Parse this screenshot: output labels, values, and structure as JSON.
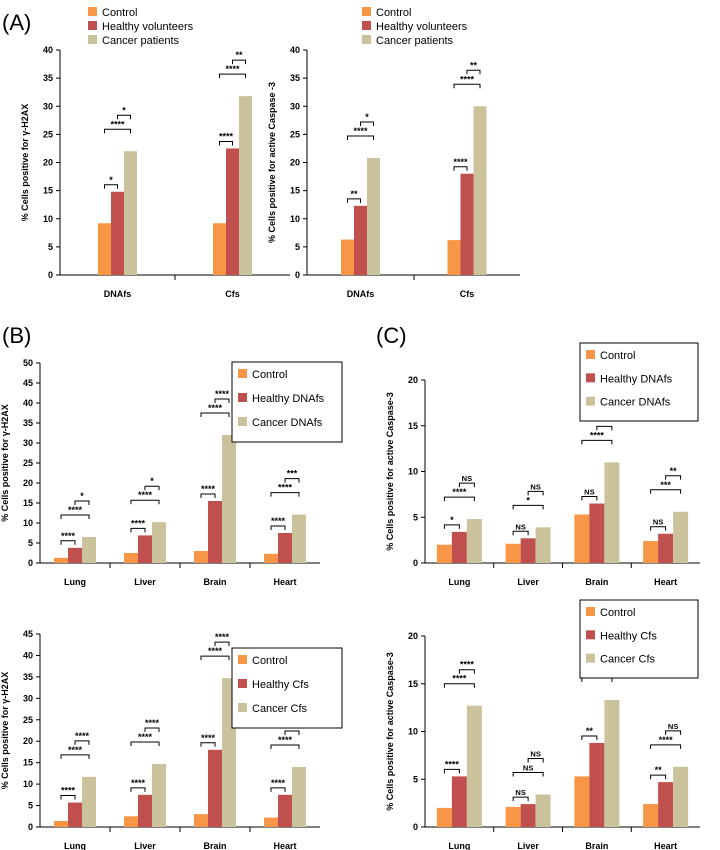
{
  "panel_labels": [
    "(A)",
    "(B)",
    "(C)"
  ],
  "colors": {
    "control": "#f79646",
    "healthy": "#c0504d",
    "cancer": "#c9c29b"
  },
  "chart_data": [
    {
      "id": "A1",
      "type": "bar",
      "categories": [
        "DNAfs",
        "Cfs"
      ],
      "ylabel": "%  Cells positive for γ-H2AX",
      "ylim": [
        0,
        40
      ],
      "yticks": [
        0,
        5,
        10,
        15,
        20,
        25,
        30,
        35,
        40
      ],
      "legend": {
        "placement": "top",
        "entries": [
          "Control",
          "Healthy volunteers",
          "Cancer patients"
        ]
      },
      "series": [
        {
          "name": "Control",
          "values": [
            9.2,
            9.2
          ]
        },
        {
          "name": "Healthy volunteers",
          "values": [
            14.8,
            22.5
          ]
        },
        {
          "name": "Cancer patients",
          "values": [
            22.0,
            31.8
          ]
        }
      ],
      "significance": [
        [
          {
            "pair": [
              0,
              1
            ],
            "label": "*"
          },
          {
            "pair": [
              0,
              2
            ],
            "label": "****"
          },
          {
            "pair": [
              1,
              2
            ],
            "label": "*"
          }
        ],
        [
          {
            "pair": [
              0,
              1
            ],
            "label": "****"
          },
          {
            "pair": [
              0,
              2
            ],
            "label": "****"
          },
          {
            "pair": [
              1,
              2
            ],
            "label": "**"
          }
        ]
      ]
    },
    {
      "id": "A2",
      "type": "bar",
      "categories": [
        "DNAfs",
        "Cfs"
      ],
      "ylabel": "%  Cells positive for active Caspase -3",
      "ylim": [
        0,
        40
      ],
      "yticks": [
        0,
        5,
        10,
        15,
        20,
        25,
        30,
        35,
        40
      ],
      "legend": {
        "placement": "top",
        "entries": [
          "Control",
          "Healthy volunteers",
          "Cancer patients"
        ]
      },
      "series": [
        {
          "name": "Control",
          "values": [
            6.3,
            6.2
          ]
        },
        {
          "name": "Healthy volunteers",
          "values": [
            12.3,
            18.0
          ]
        },
        {
          "name": "Cancer patients",
          "values": [
            20.8,
            30.0
          ]
        }
      ],
      "significance": [
        [
          {
            "pair": [
              0,
              1
            ],
            "label": "**"
          },
          {
            "pair": [
              0,
              2
            ],
            "label": "****"
          },
          {
            "pair": [
              1,
              2
            ],
            "label": "*"
          }
        ],
        [
          {
            "pair": [
              0,
              1
            ],
            "label": "****"
          },
          {
            "pair": [
              0,
              2
            ],
            "label": "****"
          },
          {
            "pair": [
              1,
              2
            ],
            "label": "**"
          }
        ]
      ]
    },
    {
      "id": "B1",
      "type": "bar",
      "categories": [
        "Lung",
        "Liver",
        "Brain",
        "Heart"
      ],
      "ylabel": "%  Cells positive for γ-H2AX",
      "ylim": [
        0,
        50
      ],
      "yticks": [
        0,
        5,
        10,
        15,
        20,
        25,
        30,
        35,
        40,
        45,
        50
      ],
      "legend": {
        "placement": "top-right",
        "entries": [
          "Control",
          "Healthy DNAfs",
          "Cancer DNAfs"
        ]
      },
      "series": [
        {
          "name": "Control",
          "values": [
            1.3,
            2.5,
            3.0,
            2.3
          ]
        },
        {
          "name": "Healthy DNAfs",
          "values": [
            3.8,
            6.9,
            15.5,
            7.5
          ]
        },
        {
          "name": "Cancer DNAfs",
          "values": [
            6.5,
            10.2,
            32.0,
            12.1
          ]
        }
      ],
      "significance": [
        [
          {
            "pair": [
              0,
              1
            ],
            "label": "****"
          },
          {
            "pair": [
              0,
              2
            ],
            "label": "****"
          },
          {
            "pair": [
              1,
              2
            ],
            "label": "*"
          }
        ],
        [
          {
            "pair": [
              0,
              1
            ],
            "label": "****"
          },
          {
            "pair": [
              0,
              2
            ],
            "label": "****"
          },
          {
            "pair": [
              1,
              2
            ],
            "label": "*"
          }
        ],
        [
          {
            "pair": [
              0,
              1
            ],
            "label": "****"
          },
          {
            "pair": [
              0,
              2
            ],
            "label": "****"
          },
          {
            "pair": [
              1,
              2
            ],
            "label": "****"
          }
        ],
        [
          {
            "pair": [
              0,
              1
            ],
            "label": "****"
          },
          {
            "pair": [
              0,
              2
            ],
            "label": "****"
          },
          {
            "pair": [
              1,
              2
            ],
            "label": "***"
          }
        ]
      ]
    },
    {
      "id": "B2",
      "type": "bar",
      "categories": [
        "Lung",
        "Liver",
        "Brain",
        "Heart"
      ],
      "ylabel": "%  Cells positive for γ-H2AX",
      "ylim": [
        0,
        45
      ],
      "yticks": [
        0,
        5,
        10,
        15,
        20,
        25,
        30,
        35,
        40,
        45
      ],
      "legend": {
        "placement": "top-right",
        "entries": [
          "Control",
          "Healthy Cfs",
          "Cancer Cfs"
        ]
      },
      "series": [
        {
          "name": "Control",
          "values": [
            1.4,
            2.5,
            3.0,
            2.2
          ]
        },
        {
          "name": "Healthy Cfs",
          "values": [
            5.7,
            7.5,
            18.0,
            7.5
          ]
        },
        {
          "name": "Cancer Cfs",
          "values": [
            11.7,
            14.7,
            34.7,
            14.0
          ]
        }
      ],
      "significance": [
        [
          {
            "pair": [
              0,
              1
            ],
            "label": "****"
          },
          {
            "pair": [
              0,
              2
            ],
            "label": "****"
          },
          {
            "pair": [
              1,
              2
            ],
            "label": "****"
          }
        ],
        [
          {
            "pair": [
              0,
              1
            ],
            "label": "****"
          },
          {
            "pair": [
              0,
              2
            ],
            "label": "****"
          },
          {
            "pair": [
              1,
              2
            ],
            "label": "****"
          }
        ],
        [
          {
            "pair": [
              0,
              1
            ],
            "label": "****"
          },
          {
            "pair": [
              0,
              2
            ],
            "label": "****"
          },
          {
            "pair": [
              1,
              2
            ],
            "label": "****"
          }
        ],
        [
          {
            "pair": [
              0,
              1
            ],
            "label": "****"
          },
          {
            "pair": [
              0,
              2
            ],
            "label": "****"
          },
          {
            "pair": [
              1,
              2
            ],
            "label": "****"
          }
        ]
      ]
    },
    {
      "id": "C1",
      "type": "bar",
      "categories": [
        "Lung",
        "Liver",
        "Brain",
        "Heart"
      ],
      "ylabel": "%  Cells positive for active Caspase-3",
      "ylim": [
        0,
        20
      ],
      "yticks": [
        0,
        5,
        10,
        15,
        20
      ],
      "legend": {
        "placement": "top-right",
        "entries": [
          "Control",
          "Healthy DNAfs",
          "Cancer DNAfs"
        ]
      },
      "series": [
        {
          "name": "Control",
          "values": [
            2.0,
            2.1,
            5.3,
            2.4
          ]
        },
        {
          "name": "Healthy DNAfs",
          "values": [
            3.4,
            2.7,
            6.5,
            3.2
          ]
        },
        {
          "name": "Cancer DNAfs",
          "values": [
            4.8,
            3.9,
            11.0,
            5.6
          ]
        }
      ],
      "significance": [
        [
          {
            "pair": [
              0,
              1
            ],
            "label": "*"
          },
          {
            "pair": [
              0,
              2
            ],
            "label": "****"
          },
          {
            "pair": [
              1,
              2
            ],
            "label": "NS"
          }
        ],
        [
          {
            "pair": [
              0,
              1
            ],
            "label": "NS"
          },
          {
            "pair": [
              0,
              2
            ],
            "label": "*"
          },
          {
            "pair": [
              1,
              2
            ],
            "label": "NS"
          }
        ],
        [
          {
            "pair": [
              0,
              1
            ],
            "label": "NS"
          },
          {
            "pair": [
              0,
              2
            ],
            "label": "****"
          },
          {
            "pair": [
              1,
              2
            ],
            "label": "***"
          }
        ],
        [
          {
            "pair": [
              0,
              1
            ],
            "label": "NS"
          },
          {
            "pair": [
              0,
              2
            ],
            "label": "***"
          },
          {
            "pair": [
              1,
              2
            ],
            "label": "**"
          }
        ]
      ]
    },
    {
      "id": "C2",
      "type": "bar",
      "categories": [
        "Lung",
        "Liver",
        "Brain",
        "Heart"
      ],
      "ylabel": "%  Cells positive for active Caspase-3",
      "ylim": [
        0,
        20
      ],
      "yticks": [
        0,
        5,
        10,
        15,
        20
      ],
      "legend": {
        "placement": "top-right",
        "entries": [
          "Control",
          "Healthy Cfs",
          "Cancer Cfs"
        ]
      },
      "series": [
        {
          "name": "Control",
          "values": [
            2.0,
            2.1,
            5.3,
            2.4
          ]
        },
        {
          "name": "Healthy Cfs",
          "values": [
            5.3,
            2.4,
            8.8,
            4.7
          ]
        },
        {
          "name": "Cancer Cfs",
          "values": [
            12.7,
            3.4,
            13.3,
            6.3
          ]
        }
      ],
      "significance": [
        [
          {
            "pair": [
              0,
              1
            ],
            "label": "****"
          },
          {
            "pair": [
              0,
              2
            ],
            "label": "****"
          },
          {
            "pair": [
              1,
              2
            ],
            "label": "****"
          }
        ],
        [
          {
            "pair": [
              0,
              1
            ],
            "label": "NS"
          },
          {
            "pair": [
              0,
              2
            ],
            "label": "NS"
          },
          {
            "pair": [
              1,
              2
            ],
            "label": "NS"
          }
        ],
        [
          {
            "pair": [
              0,
              1
            ],
            "label": "**"
          },
          {
            "pair": [
              0,
              2
            ],
            "label": "****"
          },
          {
            "pair": [
              1,
              2
            ],
            "label": "**"
          }
        ],
        [
          {
            "pair": [
              0,
              1
            ],
            "label": "**"
          },
          {
            "pair": [
              0,
              2
            ],
            "label": "****"
          },
          {
            "pair": [
              1,
              2
            ],
            "label": "NS"
          }
        ]
      ]
    }
  ]
}
